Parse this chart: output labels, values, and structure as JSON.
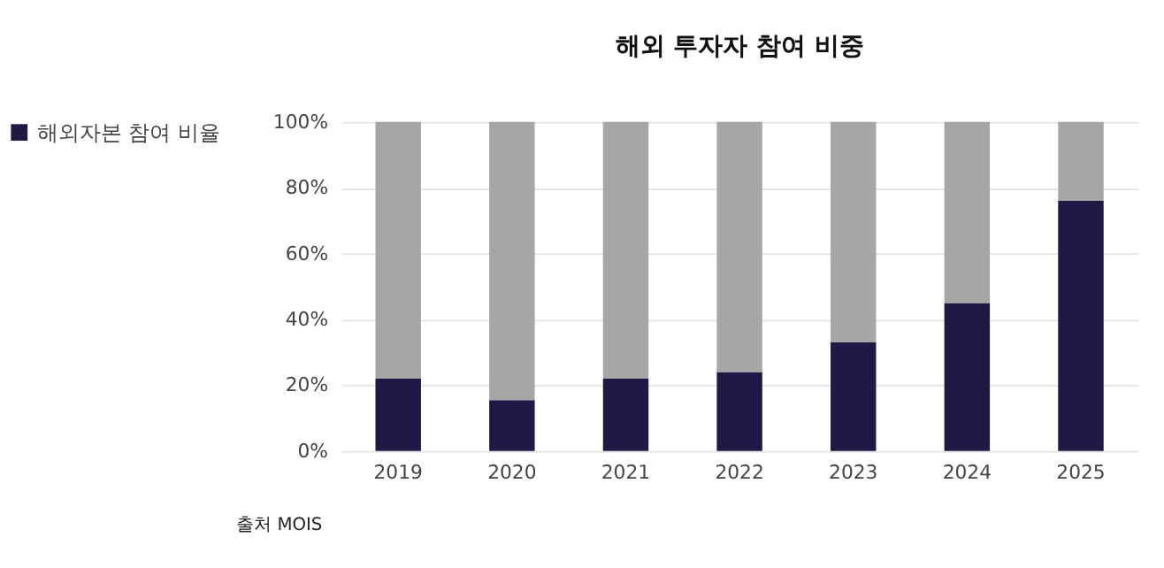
{
  "chart_data": {
    "type": "bar",
    "title": "해외 투자자 참여 비중",
    "stacked": true,
    "categories": [
      "2019",
      "2020",
      "2021",
      "2022",
      "2023",
      "2024",
      "2025"
    ],
    "series": [
      {
        "name": "해외자본 참여 비율",
        "color": "#1f1a45",
        "values": [
          22,
          15.5,
          22,
          24,
          33,
          45,
          76
        ]
      },
      {
        "color": "#a6a6a6",
        "values": [
          78,
          84.5,
          78,
          76,
          67,
          55,
          24
        ]
      }
    ],
    "ylim": [
      0,
      100
    ],
    "yticks": [
      {
        "value": 0,
        "label": "0%"
      },
      {
        "value": 20,
        "label": "20%"
      },
      {
        "value": 40,
        "label": "40%"
      },
      {
        "value": 60,
        "label": "60%"
      },
      {
        "value": 80,
        "label": "80%"
      },
      {
        "value": 100,
        "label": "100%"
      }
    ],
    "grid": "y",
    "legend": "top left",
    "annotations": [
      "출처 MOIS"
    ]
  }
}
